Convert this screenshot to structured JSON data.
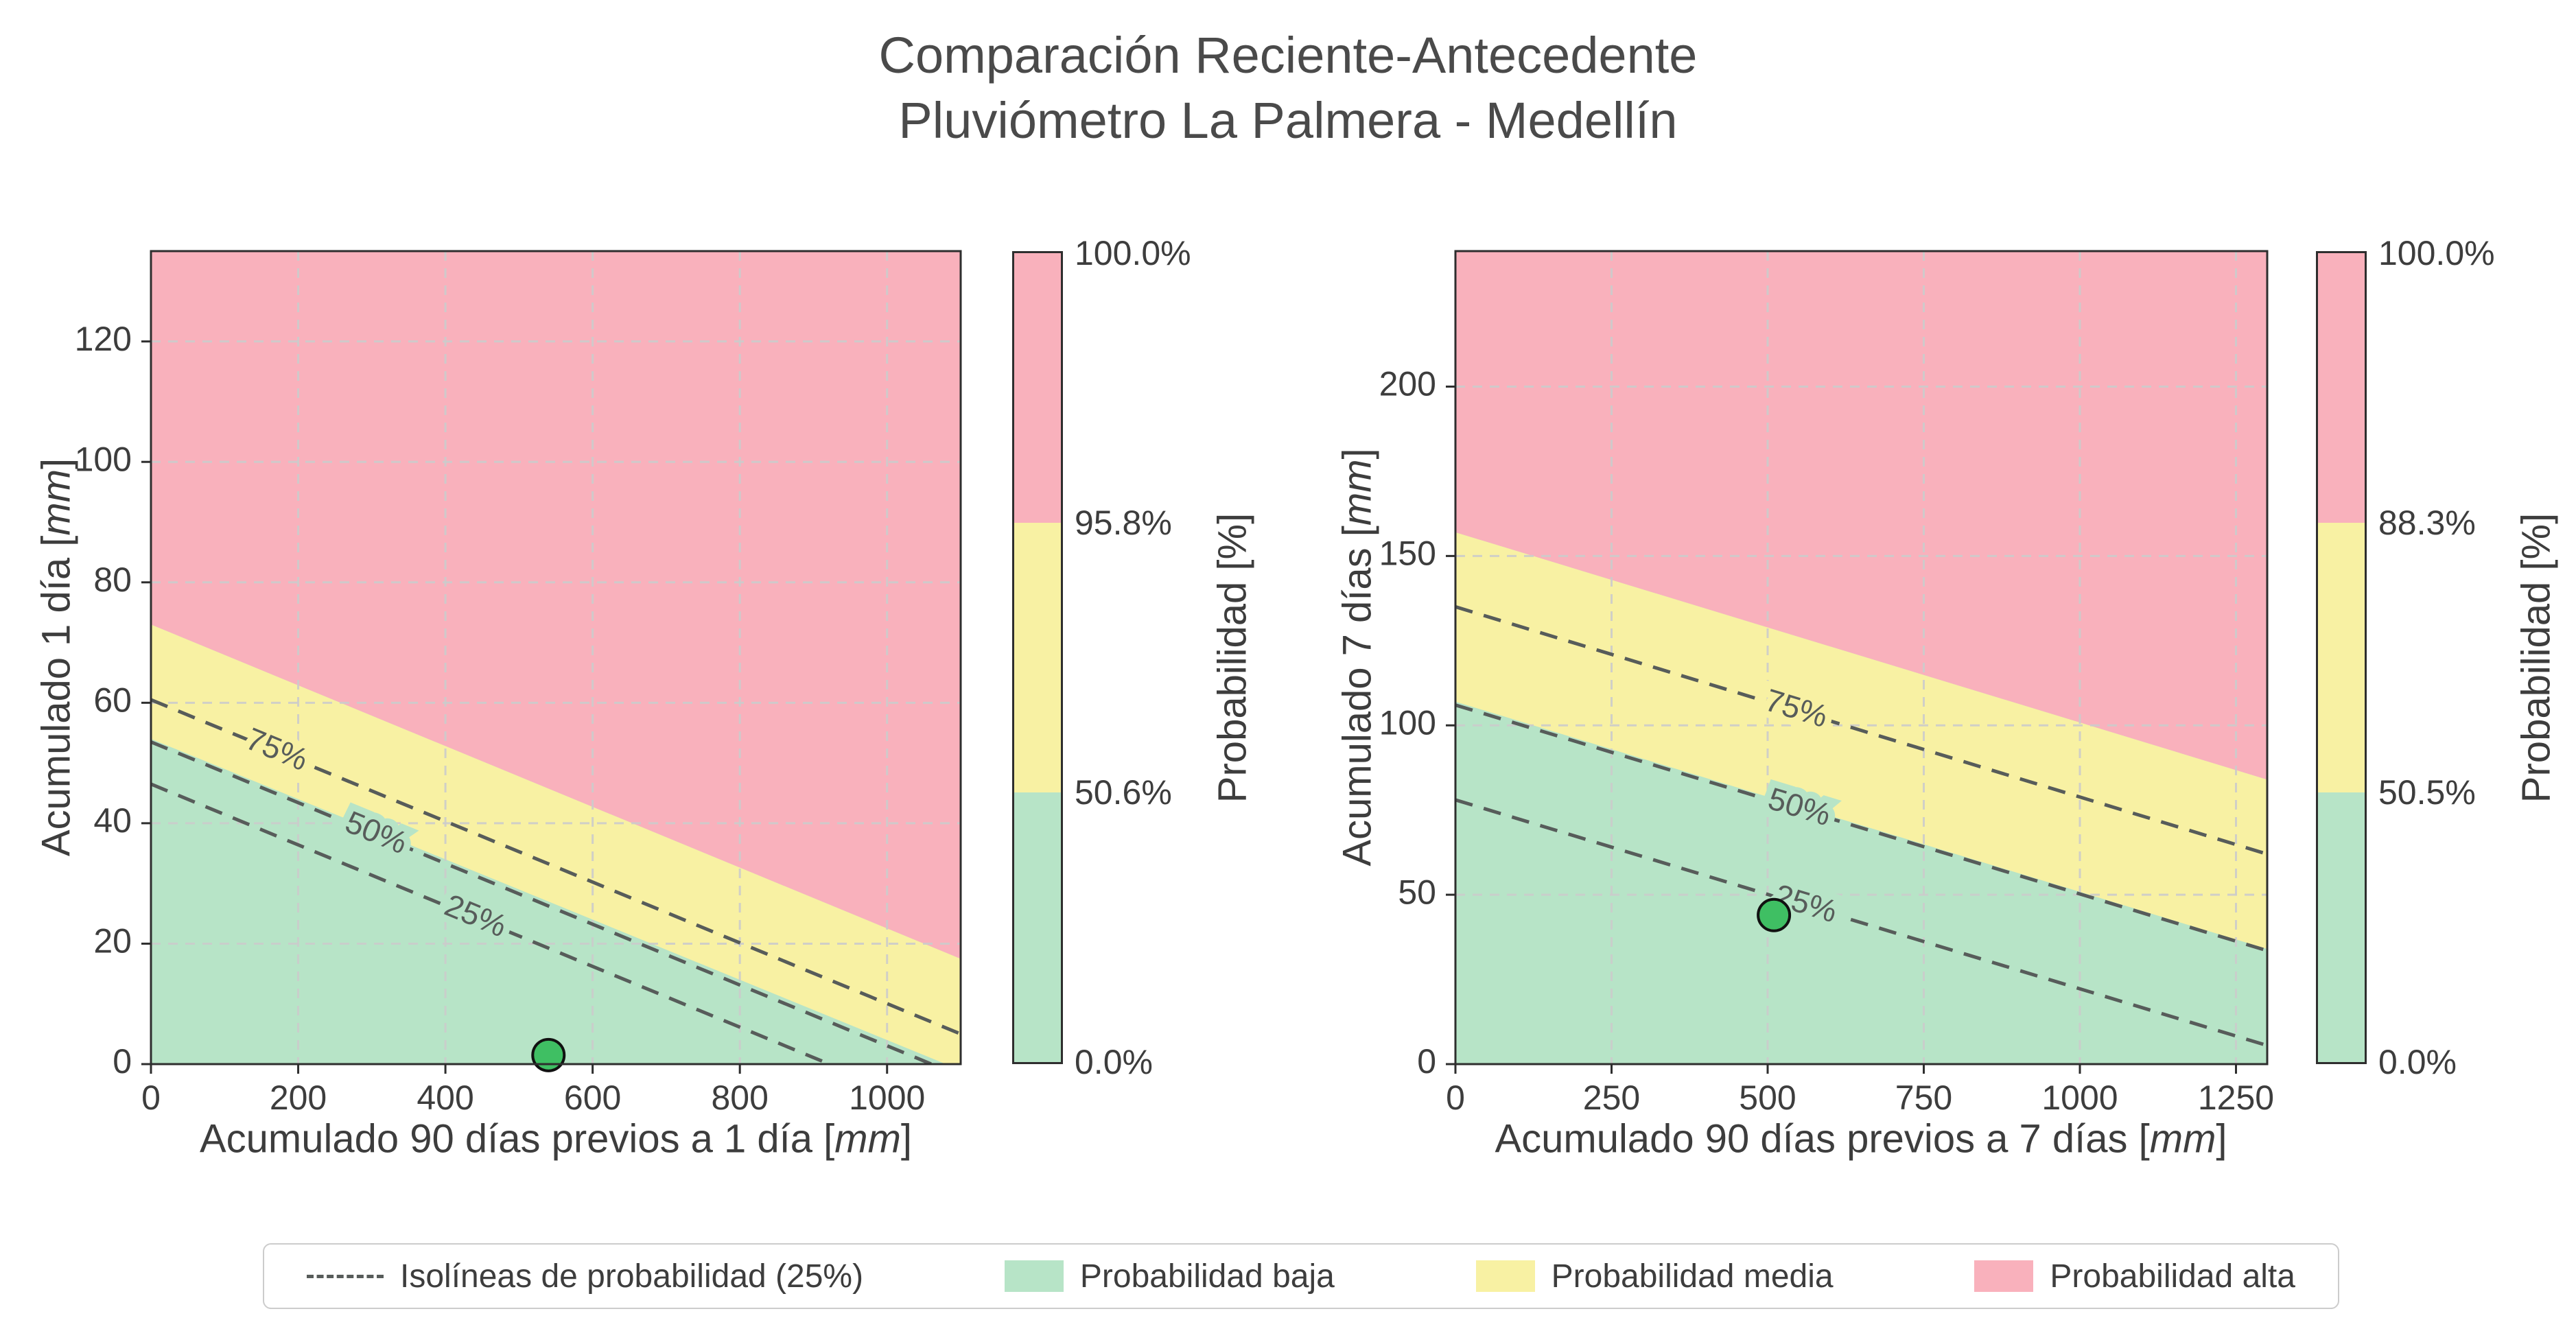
{
  "title": {
    "line1": "Comparación Reciente-Antecedente",
    "line2": "Pluviómetro La Palmera - Medellín"
  },
  "colors": {
    "low": "#b7e4c7",
    "mid": "#f8f1a3",
    "high": "#f9b1bc",
    "isoline": "#575c5a",
    "grid": "#cccccc",
    "spine": "#2e2e2e",
    "point_fill": "#3fbf63",
    "point_edge": "#111111",
    "text": "#3d3d3d",
    "title_text": "#4a4a4a"
  },
  "legend": {
    "items": [
      {
        "swatch": "dash",
        "label": "Isolíneas de probabilidad (25%)"
      },
      {
        "swatch": "low",
        "label": "Probabilidad baja"
      },
      {
        "swatch": "mid",
        "label": "Probabilidad media"
      },
      {
        "swatch": "high",
        "label": "Probabilidad alta"
      }
    ]
  },
  "chart_data": [
    {
      "type": "heatmap",
      "subtype": "filled-contour-zones",
      "xlabel": "Acumulado 90 días previos a 1 día [mm]",
      "ylabel": "Acumulado 1 día [mm]",
      "xlim": [
        0,
        1100
      ],
      "ylim": [
        0,
        135
      ],
      "xticks": [
        0,
        200,
        400,
        600,
        800,
        1000
      ],
      "yticks": [
        0,
        20,
        40,
        60,
        80,
        100,
        120
      ],
      "grid": true,
      "zones": {
        "low_mid_boundary": {
          "level": "50.6%",
          "y_at_xmin": 54,
          "y_at_xmax": -1
        },
        "mid_high_boundary": {
          "level": "95.8%",
          "y_at_xmin": 73,
          "y_at_xmax": 17.5
        }
      },
      "isolines": [
        {
          "label": "75%",
          "y_at_xmin": 60.5,
          "y_at_xmax": 5,
          "label_x": 170
        },
        {
          "label": "50%",
          "y_at_xmin": 53.5,
          "y_at_xmax": -2,
          "label_x": 305
        },
        {
          "label": "25%",
          "y_at_xmin": 46.5,
          "y_at_xmax": -9,
          "label_x": 440
        }
      ],
      "point": {
        "x": 540,
        "y": 1.5
      },
      "colorbar": {
        "title": "Probabilidad [%]",
        "tick_labels": [
          "100.0%",
          "95.8%",
          "50.6%",
          "0.0%"
        ]
      }
    },
    {
      "type": "heatmap",
      "subtype": "filled-contour-zones",
      "xlabel": "Acumulado 90 días previos a 7 días [mm]",
      "ylabel": "Acumulado 7 días [mm]",
      "xlim": [
        0,
        1300
      ],
      "ylim": [
        0,
        240
      ],
      "xticks": [
        0,
        250,
        500,
        750,
        1000,
        1250
      ],
      "yticks": [
        0,
        50,
        100,
        150,
        200
      ],
      "grid": true,
      "zones": {
        "low_mid_boundary": {
          "level": "50.5%",
          "y_at_xmin": 107,
          "y_at_xmax": 34
        },
        "mid_high_boundary": {
          "level": "88.3%",
          "y_at_xmin": 157,
          "y_at_xmax": 84
        }
      },
      "isolines": [
        {
          "label": "75%",
          "y_at_xmin": 135,
          "y_at_xmax": 62,
          "label_x": 545
        },
        {
          "label": "50%",
          "y_at_xmin": 106,
          "y_at_xmax": 33.5,
          "label_x": 550
        },
        {
          "label": "25%",
          "y_at_xmin": 78,
          "y_at_xmax": 5.5,
          "label_x": 560
        }
      ],
      "point": {
        "x": 510,
        "y": 44
      },
      "colorbar": {
        "title": "Probabilidad [%]",
        "tick_labels": [
          "100.0%",
          "88.3%",
          "50.5%",
          "0.0%"
        ]
      }
    }
  ]
}
